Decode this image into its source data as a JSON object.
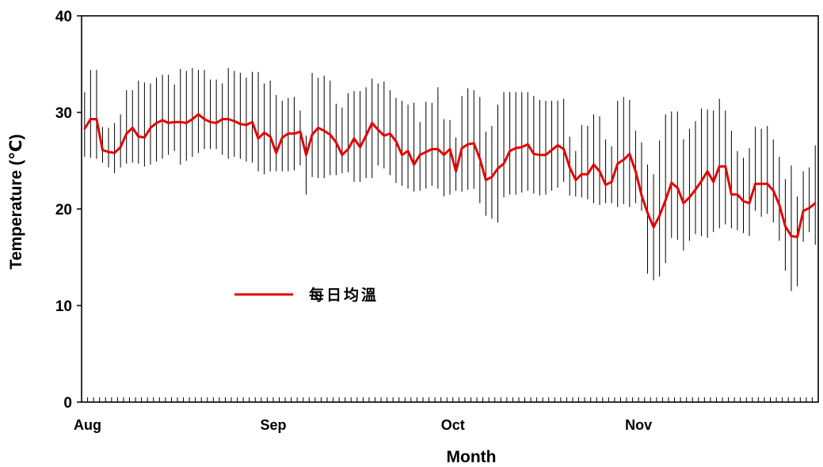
{
  "chart_data": {
    "type": "line",
    "xlabel": "Month",
    "ylabel": "Temperature (℃)",
    "ylim": [
      0,
      40
    ],
    "yticks": [
      0,
      10,
      20,
      30,
      40
    ],
    "month_labels": [
      "Aug",
      "Sep",
      "Oct",
      "Nov"
    ],
    "month_start_index": [
      1,
      32,
      62,
      93
    ],
    "grid": false,
    "legend": {
      "position": "center-left",
      "entries": [
        "每日均溫"
      ]
    },
    "series": [
      {
        "name": "每日均溫",
        "color": "#e60000",
        "values": [
          28.3,
          29.3,
          29.3,
          26.1,
          25.9,
          25.8,
          26.4,
          27.8,
          28.4,
          27.5,
          27.4,
          28.4,
          28.9,
          29.2,
          28.9,
          29.0,
          29.0,
          28.9,
          29.3,
          29.8,
          29.3,
          29.0,
          28.9,
          29.3,
          29.3,
          29.1,
          28.8,
          28.7,
          29.0,
          27.3,
          27.9,
          27.5,
          25.8,
          27.4,
          27.8,
          27.8,
          28.0,
          25.6,
          27.7,
          28.4,
          28.1,
          27.7,
          26.9,
          25.6,
          26.2,
          27.3,
          26.4,
          27.6,
          28.9,
          28.2,
          27.6,
          27.8,
          27.0,
          25.6,
          26.0,
          24.6,
          25.6,
          25.9,
          26.2,
          26.2,
          25.6,
          26.2,
          23.9,
          26.3,
          26.7,
          26.8,
          25.2,
          23.0,
          23.3,
          24.2,
          24.7,
          26.0,
          26.3,
          26.4,
          26.7,
          25.7,
          25.6,
          25.6,
          26.1,
          26.6,
          26.2,
          24.3,
          23.0,
          23.6,
          23.6,
          24.6,
          23.9,
          22.5,
          22.8,
          24.7,
          25.1,
          25.7,
          23.9,
          21.4,
          19.6,
          18.1,
          19.3,
          20.9,
          22.7,
          22.2,
          20.6,
          21.2,
          22.0,
          22.9,
          23.9,
          22.8,
          24.4,
          24.4,
          21.5,
          21.5,
          20.8,
          20.6,
          22.6,
          22.6,
          22.6,
          21.9,
          20.4,
          18.2,
          17.2,
          17.1,
          19.8,
          20.1,
          20.6
        ]
      },
      {
        "name": "",
        "color": "#000000",
        "values_max": [
          32.1,
          34.4,
          34.4,
          28.5,
          28.4,
          28.9,
          29.8,
          32.3,
          32.3,
          33.3,
          33.1,
          33.0,
          33.6,
          33.9,
          33.9,
          32.9,
          34.5,
          34.3,
          34.6,
          34.4,
          34.4,
          33.4,
          33.4,
          33.0,
          34.6,
          34.3,
          34.1,
          33.6,
          34.2,
          34.2,
          33.0,
          33.3,
          31.8,
          31.2,
          31.5,
          31.6,
          30.2,
          27.6,
          34.1,
          33.6,
          33.8,
          33.3,
          30.9,
          30.5,
          32.0,
          32.2,
          32.2,
          32.6,
          33.5,
          33.0,
          33.2,
          32.3,
          31.5,
          31.2,
          30.8,
          31.0,
          29.0,
          31.1,
          31.0,
          32.6,
          29.3,
          29.2,
          27.4,
          31.7,
          32.5,
          32.3,
          31.6,
          28.0,
          28.6,
          30.8,
          32.1,
          32.1,
          32.1,
          32.1,
          32.1,
          31.7,
          31.3,
          31.2,
          31.2,
          31.2,
          31.4,
          27.5,
          26.0,
          28.7,
          28.6,
          29.8,
          29.6,
          27.2,
          26.5,
          31.2,
          31.6,
          31.3,
          28.1,
          26.9,
          24.6,
          23.6,
          27.1,
          29.8,
          30.1,
          30.1,
          27.2,
          28.3,
          29.1,
          30.4,
          30.3,
          30.2,
          31.4,
          30.2,
          28.1,
          26.0,
          25.3,
          26.3,
          28.5,
          28.3,
          28.6,
          27.2,
          25.4,
          23.1,
          24.5,
          21.3,
          23.9,
          24.3,
          26.6
        ],
        "values_min": [
          25.4,
          25.3,
          25.2,
          24.8,
          24.3,
          23.7,
          24.3,
          24.7,
          24.8,
          24.7,
          24.4,
          24.6,
          24.9,
          25.2,
          25.6,
          26.0,
          24.6,
          25.0,
          25.4,
          25.8,
          26.2,
          26.2,
          26.2,
          25.6,
          25.2,
          25.4,
          25.2,
          24.9,
          24.8,
          23.9,
          23.6,
          23.9,
          23.9,
          23.9,
          23.9,
          24.0,
          24.5,
          21.5,
          23.3,
          23.2,
          23.2,
          23.5,
          23.5,
          23.7,
          23.8,
          22.8,
          22.8,
          23.2,
          23.2,
          24.5,
          24.2,
          23.5,
          22.7,
          22.4,
          22.1,
          21.8,
          21.9,
          22.1,
          22.4,
          22.1,
          21.3,
          21.5,
          21.9,
          21.8,
          22.0,
          22.1,
          20.6,
          19.3,
          19.0,
          18.6,
          21.2,
          21.5,
          21.5,
          21.7,
          21.9,
          21.6,
          21.4,
          21.5,
          21.9,
          22.2,
          22.8,
          21.4,
          21.3,
          21.2,
          21.0,
          20.6,
          20.4,
          20.6,
          20.6,
          20.2,
          20.5,
          20.2,
          20.6,
          19.8,
          13.3,
          12.6,
          13.0,
          14.4,
          17.0,
          16.8,
          15.7,
          16.7,
          17.4,
          17.2,
          17.0,
          17.6,
          18.0,
          18.4,
          18.0,
          17.8,
          17.5,
          17.2,
          19.8,
          19.2,
          19.5,
          18.6,
          16.7,
          13.6,
          11.5,
          12.0,
          16.6,
          17.6,
          16.3
        ]
      }
    ]
  }
}
